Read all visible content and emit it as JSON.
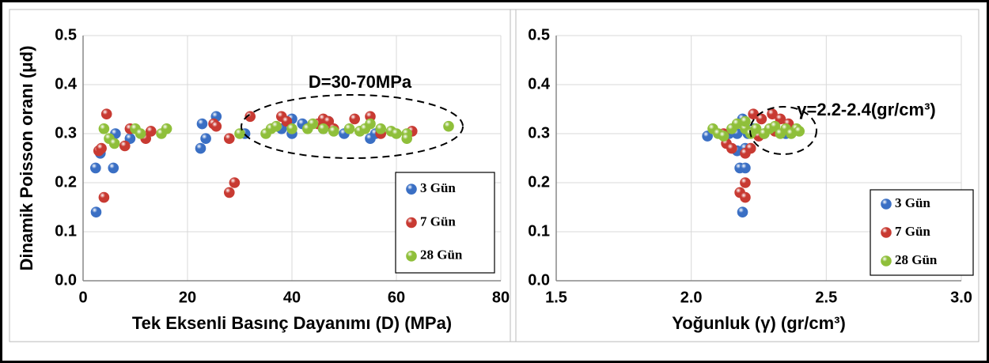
{
  "chart_data": [
    {
      "type": "scatter",
      "ylabel": "Dinamik Poisson oranı (μd)",
      "xlabel": "Tek Eksenli Basınç Dayanımı (D) (MPa)",
      "annotation": "D=30-70MPa",
      "grid": true,
      "legend": "lower right",
      "xlim": [
        0,
        80
      ],
      "xticks": [
        0,
        20,
        40,
        60,
        80
      ],
      "ylim": [
        0,
        0.5
      ],
      "yticks": [
        {
          "value": 0,
          "label": "0.0"
        },
        0.1,
        0.2,
        0.3,
        0.4,
        0.5
      ],
      "series": [
        {
          "name": "3 Gün",
          "color": "#3a6fc4",
          "x": [
            2.5,
            2.4,
            3.3,
            5.8,
            6.2,
            9,
            22.5,
            22.8,
            23.5,
            25.5,
            31,
            38,
            40,
            40,
            42,
            46,
            50,
            55,
            56,
            47
          ],
          "values": [
            0.14,
            0.23,
            0.26,
            0.23,
            0.3,
            0.29,
            0.27,
            0.32,
            0.29,
            0.335,
            0.3,
            0.31,
            0.33,
            0.3,
            0.32,
            0.31,
            0.3,
            0.29,
            0.3,
            0.325
          ]
        },
        {
          "name": "7 Gün",
          "color": "#c83a32",
          "x": [
            3,
            3.5,
            4,
            4.5,
            8,
            9,
            12,
            13,
            25,
            25.5,
            28,
            28,
            29,
            32,
            38,
            39,
            45,
            46,
            47,
            48,
            52,
            55,
            57,
            63
          ],
          "values": [
            0.265,
            0.27,
            0.17,
            0.34,
            0.275,
            0.31,
            0.29,
            0.305,
            0.32,
            0.315,
            0.29,
            0.18,
            0.2,
            0.335,
            0.335,
            0.325,
            0.32,
            0.33,
            0.325,
            0.31,
            0.33,
            0.335,
            0.3,
            0.305
          ]
        },
        {
          "name": "28 Gün",
          "color": "#8fbf3a",
          "x": [
            4,
            5,
            6,
            10,
            11,
            15,
            16,
            30,
            35,
            36,
            37,
            40,
            43,
            44,
            46,
            48,
            51,
            53,
            54,
            55,
            57,
            59,
            60,
            62,
            62,
            70
          ],
          "values": [
            0.31,
            0.29,
            0.28,
            0.31,
            0.3,
            0.3,
            0.31,
            0.3,
            0.3,
            0.31,
            0.315,
            0.31,
            0.31,
            0.32,
            0.31,
            0.305,
            0.31,
            0.305,
            0.31,
            0.32,
            0.31,
            0.305,
            0.3,
            0.3,
            0.29,
            0.315
          ]
        }
      ]
    },
    {
      "type": "scatter",
      "xlabel": "Yoğunluk (γ) (gr/cm³)",
      "annotation": "γ=2.2-2.4(gr/cm³)",
      "grid": true,
      "legend": "lower right",
      "xlim": [
        1.5,
        3.0
      ],
      "xticks": [
        1.5,
        {
          "value": 2,
          "label": "2.0"
        },
        2.5,
        {
          "value": 3,
          "label": "3.0"
        }
      ],
      "ylim": [
        0,
        0.5
      ],
      "yticks": [
        {
          "value": 0,
          "label": "0.0"
        },
        0.1,
        0.2,
        0.3,
        0.4,
        0.5
      ],
      "series": [
        {
          "name": "3 Gün",
          "color": "#3a6fc4",
          "x": [
            2.19,
            2.18,
            2.2,
            2.17,
            2.19,
            2.17,
            2.21,
            2.23,
            2.27,
            2.3,
            2.2,
            2.06,
            2.14,
            2.35
          ],
          "values": [
            0.14,
            0.23,
            0.23,
            0.265,
            0.33,
            0.3,
            0.3,
            0.31,
            0.3,
            0.31,
            0.27,
            0.295,
            0.3,
            0.3
          ]
        },
        {
          "name": "7 Gün",
          "color": "#c83a32",
          "x": [
            2.18,
            2.2,
            2.2,
            2.2,
            2.22,
            2.13,
            2.15,
            2.23,
            2.26,
            2.3,
            2.33,
            2.36,
            2.12,
            2.25,
            2.31
          ],
          "values": [
            0.18,
            0.2,
            0.17,
            0.26,
            0.27,
            0.28,
            0.27,
            0.34,
            0.33,
            0.34,
            0.33,
            0.32,
            0.3,
            0.295,
            0.305
          ]
        },
        {
          "name": "28 Gün",
          "color": "#8fbf3a",
          "x": [
            2.08,
            2.1,
            2.12,
            2.15,
            2.17,
            2.2,
            2.22,
            2.24,
            2.27,
            2.29,
            2.31,
            2.33,
            2.35,
            2.37,
            2.39,
            2.4,
            2.2
          ],
          "values": [
            0.31,
            0.3,
            0.295,
            0.31,
            0.32,
            0.31,
            0.3,
            0.31,
            0.3,
            0.31,
            0.315,
            0.3,
            0.31,
            0.3,
            0.31,
            0.305,
            0.325
          ]
        }
      ]
    }
  ]
}
